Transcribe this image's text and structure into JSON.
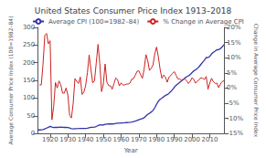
{
  "chart_data": {
    "type": "line",
    "title": "United States Consumer Price Index 1913–2018",
    "xlabel": "Year",
    "ylabel": "Average Consumer Price Index (100=1982–84)",
    "y2label": "Change in Average Consumer Price Index",
    "xlim": [
      1913,
      2018
    ],
    "xticks": [
      1920,
      1930,
      1940,
      1950,
      1960,
      1970,
      1980,
      1990,
      2000,
      2010
    ],
    "ylim": [
      0,
      300
    ],
    "yticks": [
      0,
      50,
      100,
      150,
      200,
      250,
      300
    ],
    "y2lim": [
      -15,
      20
    ],
    "y2ticks": [
      {
        "value": -15,
        "label": "-15%"
      },
      {
        "value": -10,
        "label": "-10%"
      },
      {
        "value": -5,
        "label": "-5%"
      },
      {
        "value": 0,
        "label": "0%"
      },
      {
        "value": 5,
        "label": "5%"
      },
      {
        "value": 10,
        "label": "10%"
      },
      {
        "value": 15,
        "label": "15%"
      },
      {
        "value": 20,
        "label": "20%"
      }
    ],
    "grid": false,
    "legend": "upper left",
    "series": [
      {
        "name": "Average CPI (100=1982–84)",
        "color": "#3333aa",
        "axis": "y",
        "x": [
          1913,
          1914,
          1915,
          1916,
          1917,
          1918,
          1919,
          1920,
          1921,
          1922,
          1923,
          1924,
          1925,
          1926,
          1927,
          1928,
          1929,
          1930,
          1931,
          1932,
          1933,
          1934,
          1935,
          1936,
          1937,
          1938,
          1939,
          1940,
          1941,
          1942,
          1943,
          1944,
          1945,
          1946,
          1947,
          1948,
          1949,
          1950,
          1951,
          1952,
          1953,
          1954,
          1955,
          1956,
          1957,
          1958,
          1959,
          1960,
          1961,
          1962,
          1963,
          1964,
          1965,
          1966,
          1967,
          1968,
          1969,
          1970,
          1971,
          1972,
          1973,
          1974,
          1975,
          1976,
          1977,
          1978,
          1979,
          1980,
          1981,
          1982,
          1983,
          1984,
          1985,
          1986,
          1987,
          1988,
          1989,
          1990,
          1991,
          1992,
          1993,
          1994,
          1995,
          1996,
          1997,
          1998,
          1999,
          2000,
          2001,
          2002,
          2003,
          2004,
          2005,
          2006,
          2007,
          2008,
          2009,
          2010,
          2011,
          2012,
          2013,
          2014,
          2015,
          2016,
          2017,
          2018
        ],
        "values": [
          9.9,
          10.0,
          10.1,
          10.9,
          12.8,
          15.1,
          17.3,
          20.0,
          17.9,
          16.8,
          17.1,
          17.1,
          17.5,
          17.7,
          17.4,
          17.1,
          17.1,
          16.7,
          15.2,
          13.7,
          13.0,
          13.4,
          13.7,
          13.9,
          14.4,
          14.1,
          13.9,
          14.0,
          14.7,
          16.3,
          17.3,
          17.6,
          18.0,
          19.5,
          22.3,
          24.1,
          23.8,
          24.1,
          26.0,
          26.5,
          26.7,
          26.9,
          26.8,
          27.2,
          28.1,
          28.9,
          29.1,
          29.6,
          29.9,
          30.2,
          30.6,
          31.0,
          31.5,
          32.4,
          33.4,
          34.8,
          36.7,
          38.8,
          40.5,
          41.8,
          44.4,
          49.3,
          53.8,
          56.9,
          60.6,
          65.2,
          72.6,
          82.4,
          90.9,
          96.5,
          99.6,
          103.9,
          107.6,
          109.6,
          113.6,
          118.3,
          124.0,
          130.7,
          136.2,
          140.3,
          144.5,
          148.2,
          152.4,
          156.9,
          160.5,
          163.0,
          166.6,
          172.2,
          177.1,
          179.9,
          184.0,
          188.9,
          195.3,
          201.6,
          207.3,
          215.3,
          214.5,
          218.1,
          224.9,
          229.6,
          232.9,
          236.7,
          237.0,
          240.0,
          245.1,
          251.1
        ]
      },
      {
        "name": "% Change in Average CPI",
        "color": "#cc2222",
        "axis": "y2",
        "x": [
          1914,
          1915,
          1916,
          1917,
          1918,
          1919,
          1920,
          1921,
          1922,
          1923,
          1924,
          1925,
          1926,
          1927,
          1928,
          1929,
          1930,
          1931,
          1932,
          1933,
          1934,
          1935,
          1936,
          1937,
          1938,
          1939,
          1940,
          1941,
          1942,
          1943,
          1944,
          1945,
          1946,
          1947,
          1948,
          1949,
          1950,
          1951,
          1952,
          1953,
          1954,
          1955,
          1956,
          1957,
          1958,
          1959,
          1960,
          1961,
          1962,
          1963,
          1964,
          1965,
          1966,
          1967,
          1968,
          1969,
          1970,
          1971,
          1972,
          1973,
          1974,
          1975,
          1976,
          1977,
          1978,
          1979,
          1980,
          1981,
          1982,
          1983,
          1984,
          1985,
          1986,
          1987,
          1988,
          1989,
          1990,
          1991,
          1992,
          1993,
          1994,
          1995,
          1996,
          1997,
          1998,
          1999,
          2000,
          2001,
          2002,
          2003,
          2004,
          2005,
          2006,
          2007,
          2008,
          2009,
          2010,
          2011,
          2012,
          2013,
          2014,
          2015,
          2016,
          2017,
          2018
        ],
        "values": [
          1.0,
          1.0,
          7.9,
          17.4,
          18.0,
          14.6,
          15.6,
          -10.5,
          -6.1,
          1.8,
          0.0,
          2.3,
          1.1,
          -1.7,
          -1.7,
          0.0,
          -2.3,
          -9.0,
          -9.9,
          -5.1,
          3.1,
          2.2,
          1.5,
          3.6,
          -2.1,
          -1.4,
          0.7,
          5.0,
          10.9,
          6.1,
          1.7,
          2.3,
          8.3,
          14.4,
          8.1,
          -1.2,
          1.3,
          7.9,
          1.9,
          0.8,
          0.7,
          -0.4,
          1.5,
          3.3,
          2.8,
          0.7,
          1.7,
          1.0,
          1.0,
          1.3,
          1.3,
          1.6,
          2.9,
          3.1,
          4.2,
          5.5,
          5.7,
          4.4,
          3.2,
          6.2,
          11.0,
          9.1,
          5.8,
          6.5,
          7.6,
          11.3,
          13.5,
          10.3,
          6.2,
          3.2,
          4.3,
          3.6,
          1.9,
          3.6,
          4.1,
          4.8,
          5.4,
          4.2,
          3.0,
          3.0,
          2.6,
          2.8,
          3.0,
          2.3,
          1.5,
          2.2,
          3.4,
          2.8,
          1.6,
          2.3,
          2.7,
          3.4,
          3.2,
          2.8,
          3.8,
          -0.4,
          1.6,
          3.2,
          2.1,
          1.5,
          1.6,
          0.1,
          1.3,
          2.1,
          2.4
        ]
      }
    ]
  }
}
